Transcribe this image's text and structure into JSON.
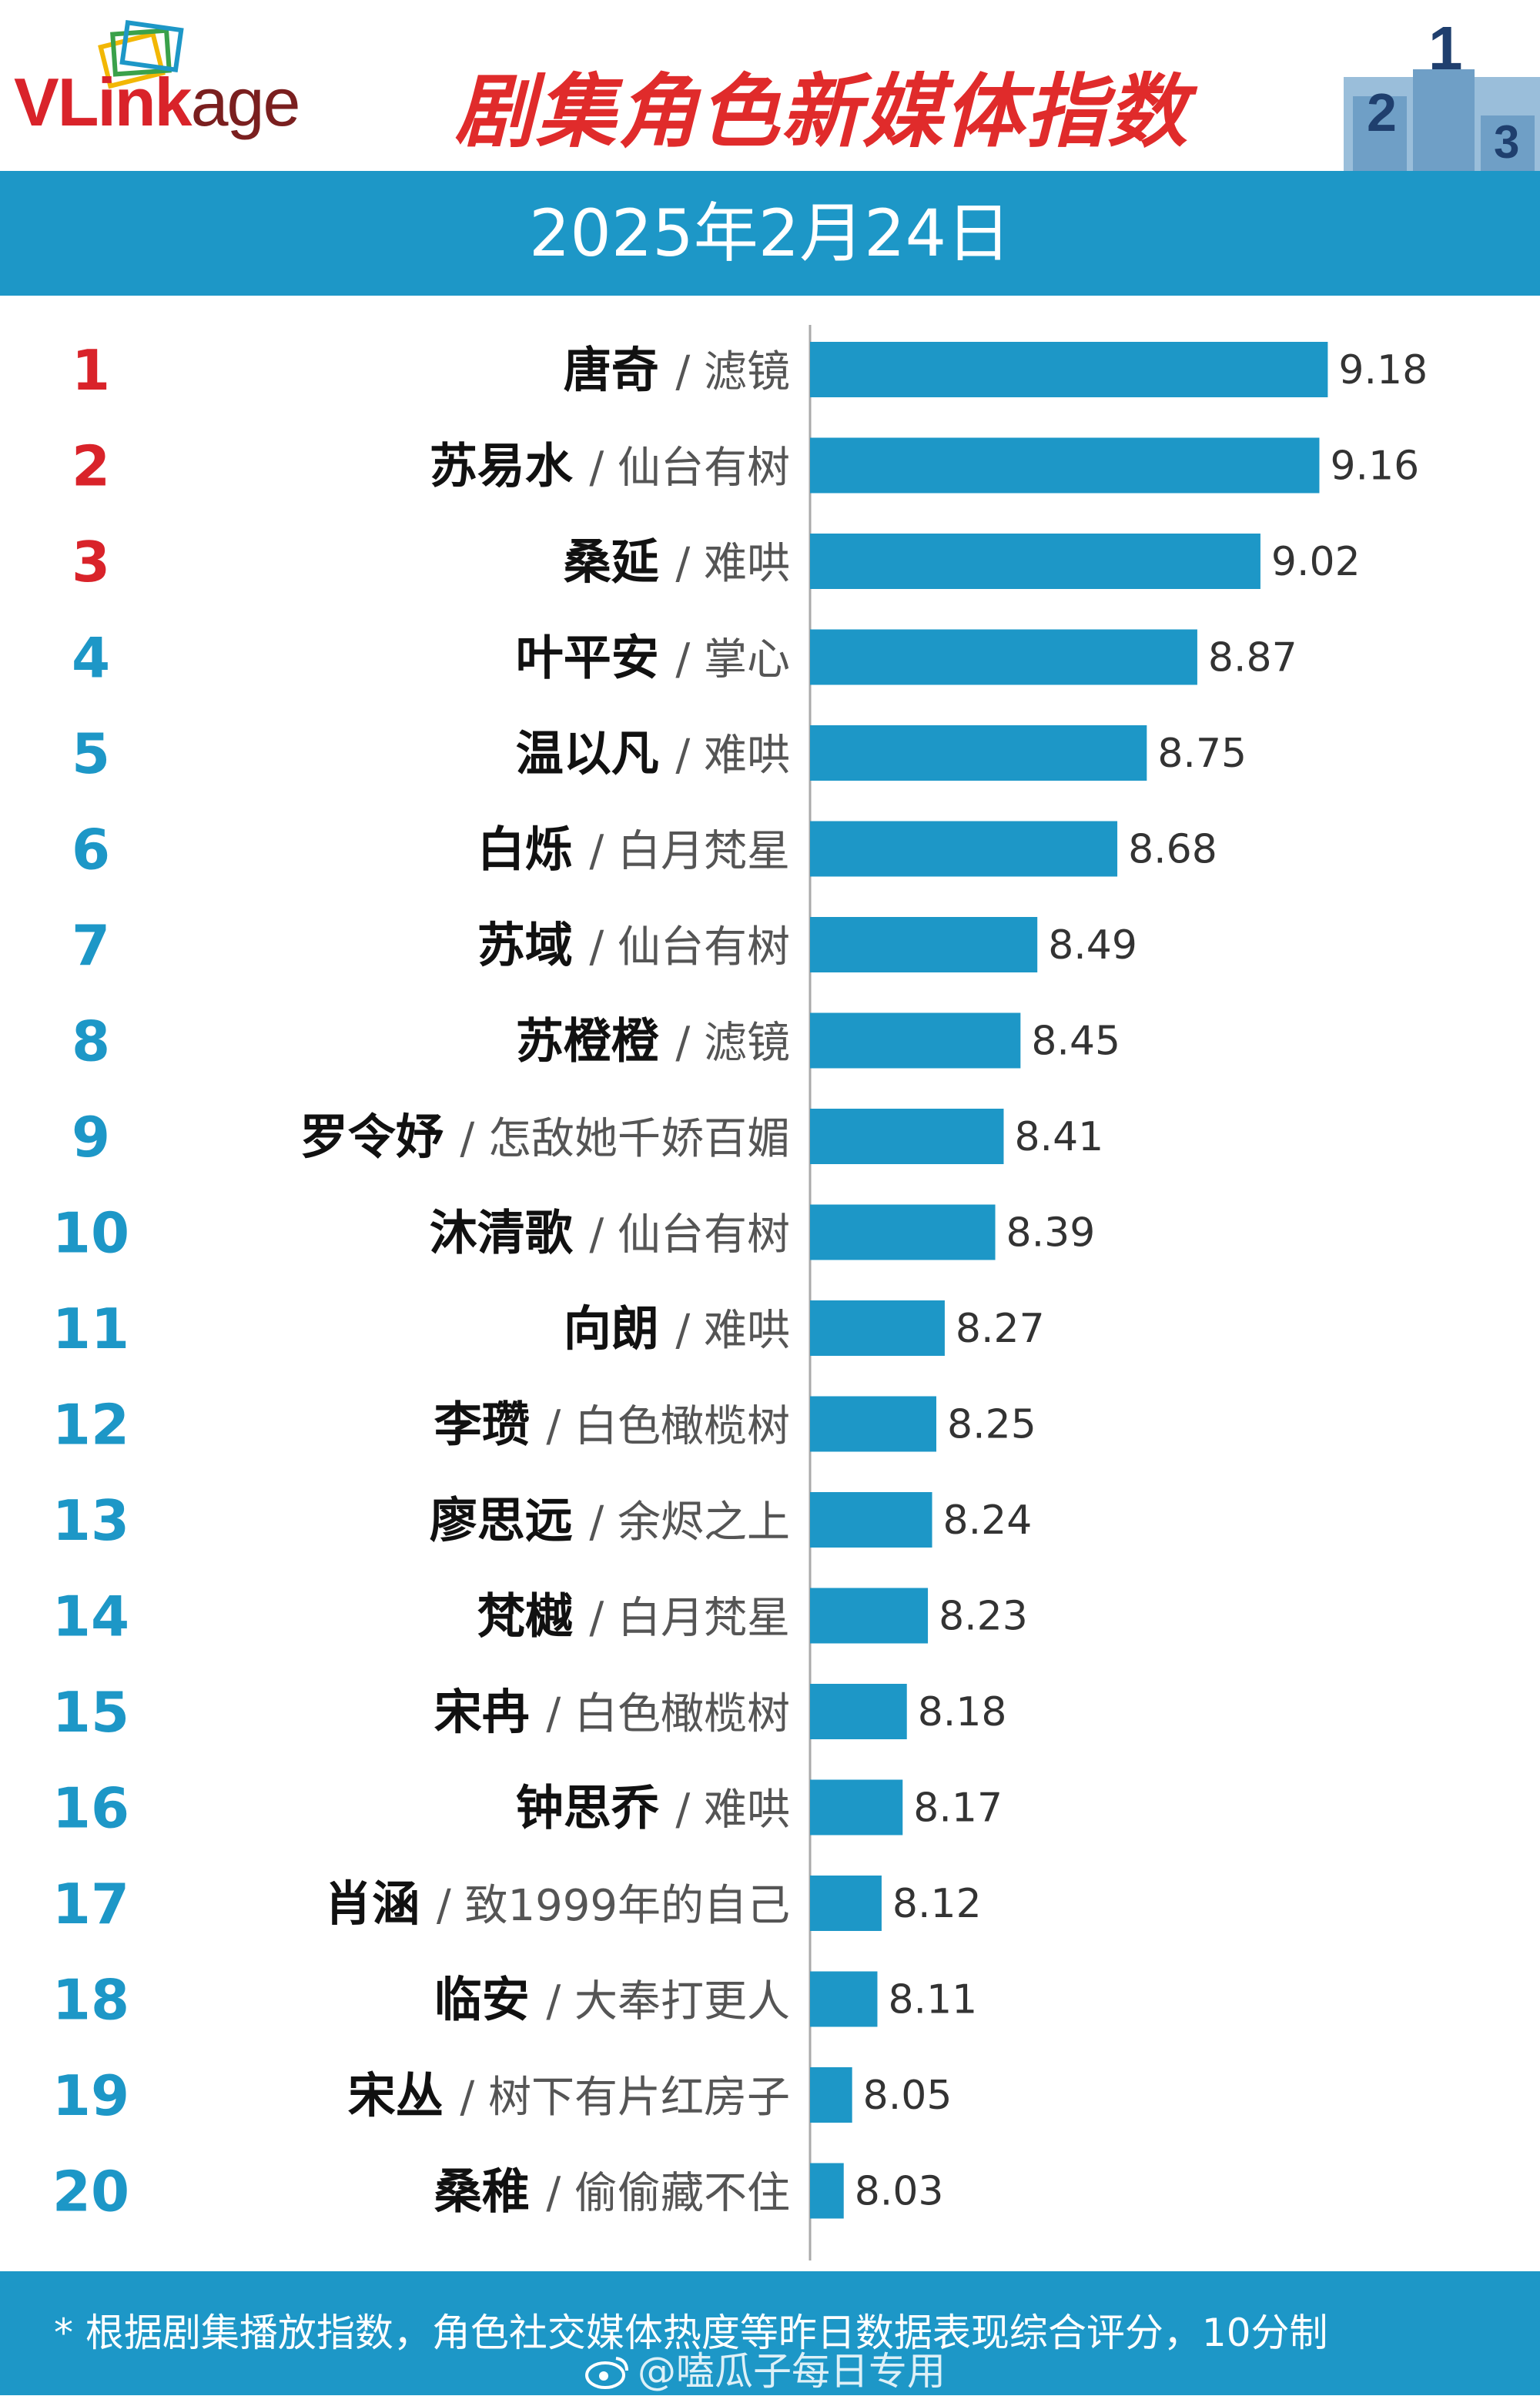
{
  "header": {
    "logo": "VLinkage",
    "title": "剧集角色新媒体指数",
    "podium": [
      "2",
      "1",
      "3"
    ]
  },
  "date": "2025年2月24日",
  "footer": {
    "note": "* 根据剧集播放指数，角色社交媒体热度等昨日数据表现综合评分，10分制",
    "watermark": "@嗑瓜子每日专用"
  },
  "colors": {
    "bar": "#1d97c7",
    "band": "#1d97c7",
    "rank_top3": "#d9232a",
    "rank_other": "#1d97c7",
    "title": "#e02b2b"
  },
  "chart_data": {
    "type": "bar",
    "orientation": "horizontal",
    "xlim": [
      7.95,
      9.3
    ],
    "ranks": [
      "1",
      "2",
      "3",
      "4",
      "5",
      "6",
      "7",
      "8",
      "9",
      "10",
      "11",
      "12",
      "13",
      "14",
      "15",
      "16",
      "17",
      "18",
      "19",
      "20"
    ],
    "roles": [
      "唐奇",
      "苏易水",
      "桑延",
      "叶平安",
      "温以凡",
      "白烁",
      "苏域",
      "苏橙橙",
      "罗令妤",
      "沐清歌",
      "向朗",
      "李瓒",
      "廖思远",
      "梵樾",
      "宋冉",
      "钟思乔",
      "肖涵",
      "临安",
      "宋丛",
      "桑稚"
    ],
    "dramas": [
      "滤镜",
      "仙台有树",
      "难哄",
      "掌心",
      "难哄",
      "白月梵星",
      "仙台有树",
      "滤镜",
      "怎敌她千娇百媚",
      "仙台有树",
      "难哄",
      "白色橄榄树",
      "余烬之上",
      "白月梵星",
      "白色橄榄树",
      "难哄",
      "致1999年的自己",
      "大奉打更人",
      "树下有片红房子",
      "偷偷藏不住"
    ],
    "values": [
      9.18,
      9.16,
      9.02,
      8.87,
      8.75,
      8.68,
      8.49,
      8.45,
      8.41,
      8.39,
      8.27,
      8.25,
      8.24,
      8.23,
      8.18,
      8.17,
      8.12,
      8.11,
      8.05,
      8.03
    ],
    "value_labels": [
      "9.18",
      "9.16",
      "9.02",
      "8.87",
      "8.75",
      "8.68",
      "8.49",
      "8.45",
      "8.41",
      "8.39",
      "8.27",
      "8.25",
      "8.24",
      "8.23",
      "8.18",
      "8.17",
      "8.12",
      "8.11",
      "8.05",
      "8.03"
    ],
    "separator": "/"
  }
}
